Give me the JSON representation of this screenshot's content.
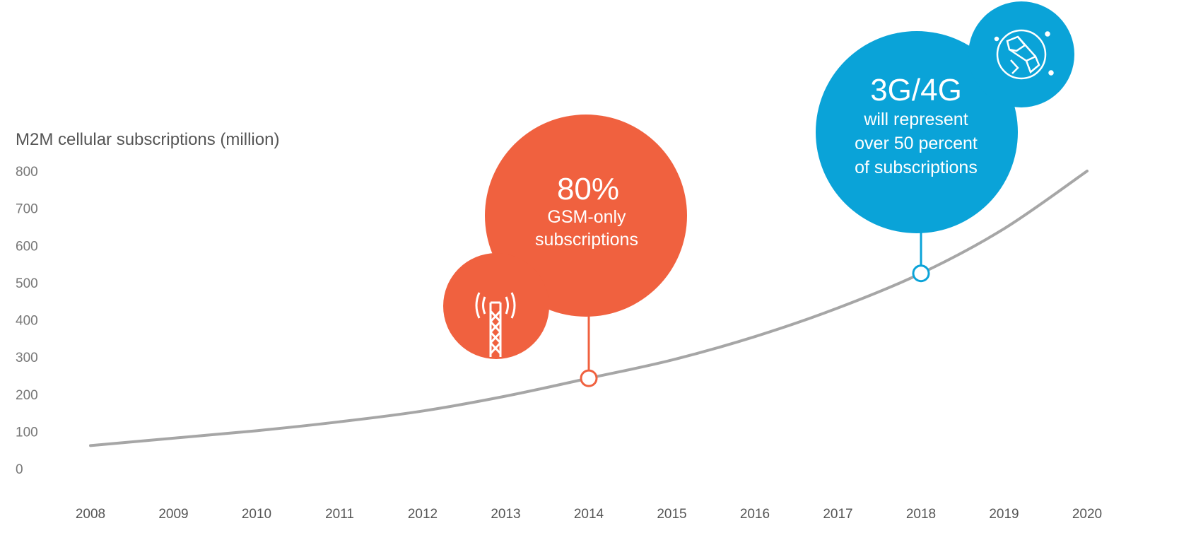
{
  "chart_data": {
    "type": "line",
    "ylabel": "M2M cellular subscriptions (million)",
    "xlabel": "",
    "title": "",
    "x": [
      "2008",
      "2009",
      "2010",
      "2011",
      "2012",
      "2013",
      "2014",
      "2015",
      "2016",
      "2017",
      "2018",
      "2019",
      "2020"
    ],
    "series": [
      {
        "values": [
          62,
          82,
          102,
          126,
          155,
          195,
          243,
          292,
          355,
          432,
          525,
          645,
          800
        ]
      }
    ],
    "ylim": [
      0,
      800
    ],
    "yticks": [
      "0",
      "100",
      "200",
      "300",
      "400",
      "500",
      "600",
      "700",
      "800"
    ],
    "grid": false,
    "line_color": "#a6a6a6",
    "annotations": [
      {
        "id": "gsm",
        "x": "2014",
        "value_label": "80%",
        "lines": [
          "GSM-only",
          "subscriptions"
        ],
        "color": "#f0613f",
        "icon": "cell-tower-icon"
      },
      {
        "id": "g34",
        "x": "2018",
        "value_label": "3G/4G",
        "lines": [
          "will represent",
          "over 50 percent",
          "of subscriptions"
        ],
        "color": "#0aa3d8",
        "icon": "globe-network-icon"
      }
    ]
  }
}
